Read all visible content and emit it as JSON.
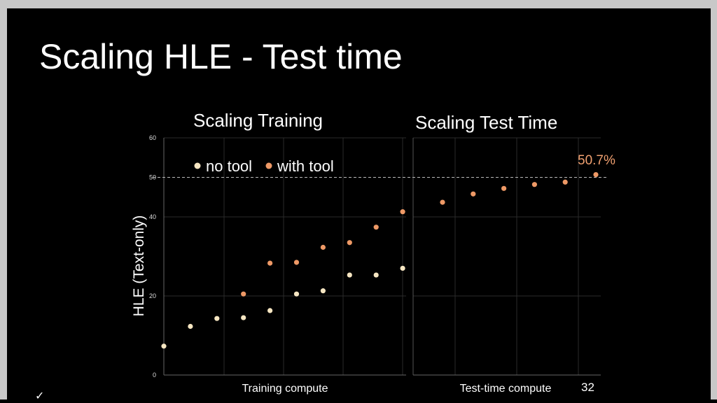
{
  "slide": {
    "title": "Scaling HLE - Test time",
    "number": "32"
  },
  "colors": {
    "background": "#000000",
    "no_tool": "#f6e6c2",
    "with_tool": "#ee9966",
    "annotation": "#f0a070",
    "grid": "#2a2a2a",
    "reference_line": "#bbbbbb"
  },
  "chart_data": [
    {
      "type": "scatter",
      "title": "Scaling Training",
      "xlabel": "Training compute",
      "ylabel": "HLE (Text-only)",
      "ylim": [
        0,
        60
      ],
      "yticks": [
        0,
        20,
        40,
        50,
        60
      ],
      "grid": true,
      "legend": {
        "placement": "top-left",
        "entries": [
          "no tool",
          "with tool"
        ]
      },
      "reference_line": {
        "y": 50,
        "style": "dashed"
      },
      "series": [
        {
          "name": "no tool",
          "color": "#f6e6c2",
          "x": [
            1,
            2,
            3,
            4,
            5,
            6,
            7,
            8,
            9,
            10
          ],
          "y": [
            7.3,
            12.3,
            14.3,
            14.5,
            16.3,
            20.5,
            21.3,
            25.3,
            25.3,
            27.0
          ]
        },
        {
          "name": "with tool",
          "color": "#ee9966",
          "x": [
            4,
            5,
            6,
            7,
            8,
            9,
            10
          ],
          "y": [
            20.5,
            28.3,
            28.5,
            32.3,
            33.5,
            37.4,
            41.3
          ]
        }
      ]
    },
    {
      "type": "scatter",
      "title": "Scaling Test Time",
      "xlabel": "Test-time compute",
      "ylim": [
        0,
        60
      ],
      "grid": true,
      "reference_line": {
        "y": 50,
        "style": "dashed"
      },
      "series": [
        {
          "name": "with tool",
          "color": "#ee9966",
          "x": [
            1,
            2,
            3,
            4,
            5,
            6
          ],
          "y": [
            43.7,
            45.8,
            47.2,
            48.2,
            48.8,
            50.7
          ]
        }
      ],
      "annotations": [
        {
          "text": "50.7%",
          "x": 6,
          "y": 50.7
        }
      ]
    }
  ]
}
